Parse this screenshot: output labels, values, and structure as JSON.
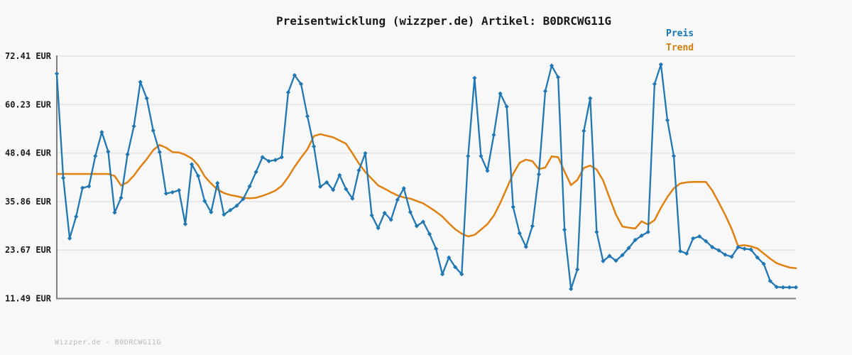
{
  "title": "Preisentwicklung (wizzper.de) Artikel: B0DRCWG11G",
  "legend": {
    "items": [
      {
        "label": "Preis",
        "color": "#1475b8"
      },
      {
        "label": "Trend",
        "color": "#d07d0a"
      }
    ]
  },
  "footer": {
    "text": "Wizzper.de - B0DRCWG11G"
  },
  "colors": {
    "background": "#f8f8f8",
    "grid": "#e6e6e6",
    "spine": "#7f7f7f",
    "tick_text": "#1a1a1a",
    "title_text": "#1a1a1a",
    "price": "#1f77b4",
    "trend": "#e0810f"
  },
  "chart_data": {
    "type": "line",
    "title": "Preisentwicklung (wizzper.de) Artikel: B0DRCWG11G",
    "currency": "EUR",
    "y_ticks": [
      "72.41 EUR",
      "60.23 EUR",
      "48.04 EUR",
      "35.86 EUR",
      "23.67 EUR",
      "11.49 EUR"
    ],
    "y_tick_values": [
      72.41,
      60.23,
      48.04,
      35.86,
      23.67,
      11.49
    ],
    "ylim": [
      11.49,
      72.41
    ],
    "x_tick_labels": [],
    "grid": "horizontal",
    "legend_position": "top-right",
    "series": [
      {
        "name": "Preis",
        "style": "line-with-diamond-markers",
        "color": "#1f77b4",
        "values": [
          68.0,
          41.8,
          26.6,
          32.1,
          39.3,
          39.7,
          47.3,
          53.3,
          48.4,
          33.1,
          36.8,
          47.7,
          54.8,
          65.9,
          61.8,
          53.7,
          48.3,
          37.9,
          38.2,
          38.7,
          30.2,
          45.2,
          42.3,
          36.0,
          33.2,
          40.5,
          32.6,
          33.7,
          34.8,
          36.5,
          39.7,
          43.3,
          47.0,
          46.0,
          46.3,
          47.0,
          63.3,
          67.6,
          65.4,
          57.3,
          49.7,
          39.6,
          40.7,
          38.8,
          42.5,
          39.0,
          36.6,
          43.7,
          48.0,
          32.4,
          29.2,
          33.0,
          31.3,
          36.3,
          39.2,
          33.2,
          29.7,
          30.8,
          27.7,
          24.0,
          17.6,
          21.8,
          19.4,
          17.6,
          47.3,
          66.9,
          47.3,
          43.6,
          52.6,
          63.0,
          59.7,
          34.5,
          27.9,
          24.5,
          29.7,
          42.7,
          63.6,
          70.0,
          67.1,
          28.8,
          13.9,
          18.8,
          53.6,
          61.8,
          28.2,
          20.9,
          22.2,
          21.0,
          22.4,
          24.2,
          26.2,
          27.3,
          28.2,
          65.4,
          70.3,
          56.3,
          47.3,
          23.4,
          22.8,
          26.6,
          27.1,
          25.9,
          24.4,
          23.6,
          22.5,
          22.0,
          24.4,
          24.0,
          23.8,
          21.8,
          20.2,
          15.9,
          14.4,
          14.3,
          14.3,
          14.3
        ]
      },
      {
        "name": "Trend",
        "style": "line",
        "color": "#e0810f",
        "values": [
          42.8,
          42.8,
          42.8,
          42.8,
          42.8,
          42.8,
          42.8,
          42.8,
          42.8,
          42.3,
          39.9,
          40.7,
          42.4,
          44.6,
          46.5,
          48.8,
          50.1,
          49.4,
          48.3,
          48.2,
          47.6,
          46.7,
          45.0,
          42.2,
          40.4,
          38.9,
          38.0,
          37.5,
          37.2,
          36.8,
          36.7,
          36.8,
          37.3,
          37.9,
          38.6,
          39.8,
          42.0,
          44.6,
          46.9,
          49.0,
          52.3,
          52.8,
          52.4,
          52.0,
          51.2,
          50.4,
          48.0,
          45.4,
          43.3,
          41.6,
          39.9,
          39.1,
          38.2,
          37.4,
          36.9,
          36.6,
          36.0,
          35.4,
          34.4,
          33.3,
          32.1,
          30.4,
          28.9,
          27.8,
          27.1,
          27.5,
          28.8,
          30.2,
          32.3,
          35.5,
          39.2,
          42.8,
          45.6,
          46.4,
          46.0,
          44.0,
          44.4,
          47.2,
          47.0,
          43.4,
          40.0,
          41.3,
          44.3,
          44.9,
          43.9,
          41.2,
          36.8,
          32.6,
          29.6,
          29.3,
          29.1,
          30.9,
          30.1,
          31.2,
          34.3,
          37.0,
          39.2,
          40.4,
          40.7,
          40.8,
          40.8,
          40.8,
          38.6,
          35.6,
          32.5,
          29.0,
          24.7,
          24.9,
          24.6,
          24.1,
          22.8,
          21.5,
          20.4,
          19.8,
          19.3,
          19.1
        ]
      }
    ]
  }
}
